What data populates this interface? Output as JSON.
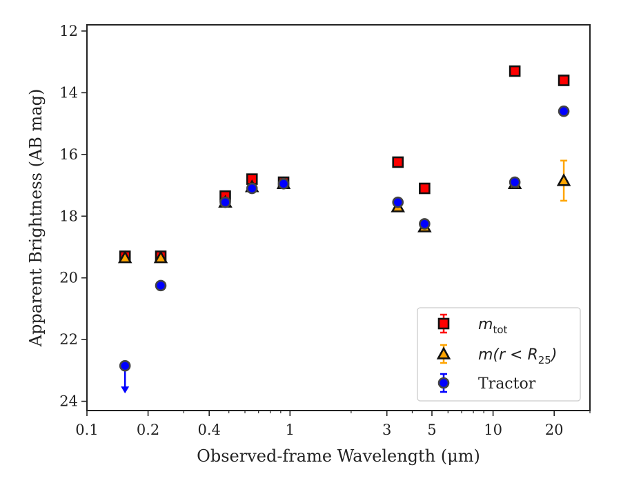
{
  "chart_data": {
    "type": "scatter",
    "xlabel": "Observed-frame Wavelength (μm)",
    "ylabel": "Apparent Brightness (AB mag)",
    "xscale": "log",
    "xlim": [
      0.1,
      30
    ],
    "ylim": [
      24.3,
      11.8
    ],
    "y_inverted": true,
    "x_ticks": [
      0.1,
      0.2,
      0.4,
      1,
      3,
      5,
      10,
      20
    ],
    "x_tick_labels": [
      "0.1",
      "0.2",
      "0.4",
      "1",
      "3",
      "5",
      "10",
      "20"
    ],
    "y_ticks": [
      12,
      14,
      16,
      18,
      20,
      22,
      24
    ],
    "y_tick_labels": [
      "12",
      "14",
      "16",
      "18",
      "20",
      "22",
      "24"
    ],
    "grid": false,
    "legend_position": "lower-right",
    "legend": [
      {
        "label_base": "m",
        "label_sub": "tot",
        "marker": "square",
        "color": "#ff0000",
        "errcolor": "#ff0000"
      },
      {
        "label_base": "m(r < R",
        "label_sub": "25",
        "label_tail": ")",
        "marker": "triangle",
        "color": "#3a3a3a",
        "errcolor": "#ffa500"
      },
      {
        "label_plain": "Tractor",
        "marker": "circle",
        "color": "#0000ff",
        "errcolor": "#0000ff"
      }
    ],
    "series": [
      {
        "key": "m_tot",
        "marker": "square",
        "face": "#ff0000",
        "edge": "#111111",
        "errcolor": "#ff0000",
        "x": [
          0.154,
          0.231,
          0.48,
          0.65,
          0.93,
          3.4,
          4.6,
          12.8,
          22.3
        ],
        "y": [
          19.3,
          19.3,
          17.35,
          16.8,
          16.9,
          16.25,
          17.1,
          13.3,
          13.6
        ],
        "err": [
          0.05,
          0.05,
          0.05,
          0.05,
          0.05,
          0.05,
          0.05,
          0.05,
          0.05
        ]
      },
      {
        "key": "m_r25",
        "marker": "triangle",
        "face": "#ffa500",
        "edge": "#111111",
        "errcolor": "#ffa500",
        "x": [
          0.154,
          0.231,
          0.48,
          0.65,
          0.93,
          3.4,
          4.6,
          12.8,
          22.3
        ],
        "y": [
          19.35,
          19.35,
          17.55,
          17.05,
          16.95,
          17.7,
          18.35,
          16.95,
          16.85
        ],
        "err": [
          0.05,
          0.05,
          0.05,
          0.05,
          0.05,
          0.05,
          0.05,
          0.05,
          0.65
        ]
      },
      {
        "key": "tractor",
        "marker": "circle",
        "face": "#0000ff",
        "edge": "#444444",
        "errcolor": "#0000ff",
        "x": [
          0.154,
          0.231,
          0.48,
          0.65,
          0.93,
          3.4,
          4.6,
          12.8,
          22.3
        ],
        "y": [
          22.85,
          20.25,
          17.55,
          17.1,
          16.95,
          17.55,
          18.25,
          16.9,
          14.6
        ],
        "err": [
          0.05,
          0.05,
          0.05,
          0.05,
          0.05,
          0.05,
          0.05,
          0.05,
          0.05
        ],
        "upper_limit_index": 0,
        "upper_limit_to": 23.7
      }
    ]
  }
}
